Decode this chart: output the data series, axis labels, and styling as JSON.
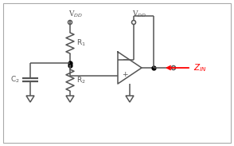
{
  "bg_color": "#ffffff",
  "border_color": "#aaaaaa",
  "line_color": "#555555",
  "red_color": "#ff0000",
  "dot_color": "#000000",
  "fig_width": 2.94,
  "fig_height": 1.83,
  "dpi": 100
}
